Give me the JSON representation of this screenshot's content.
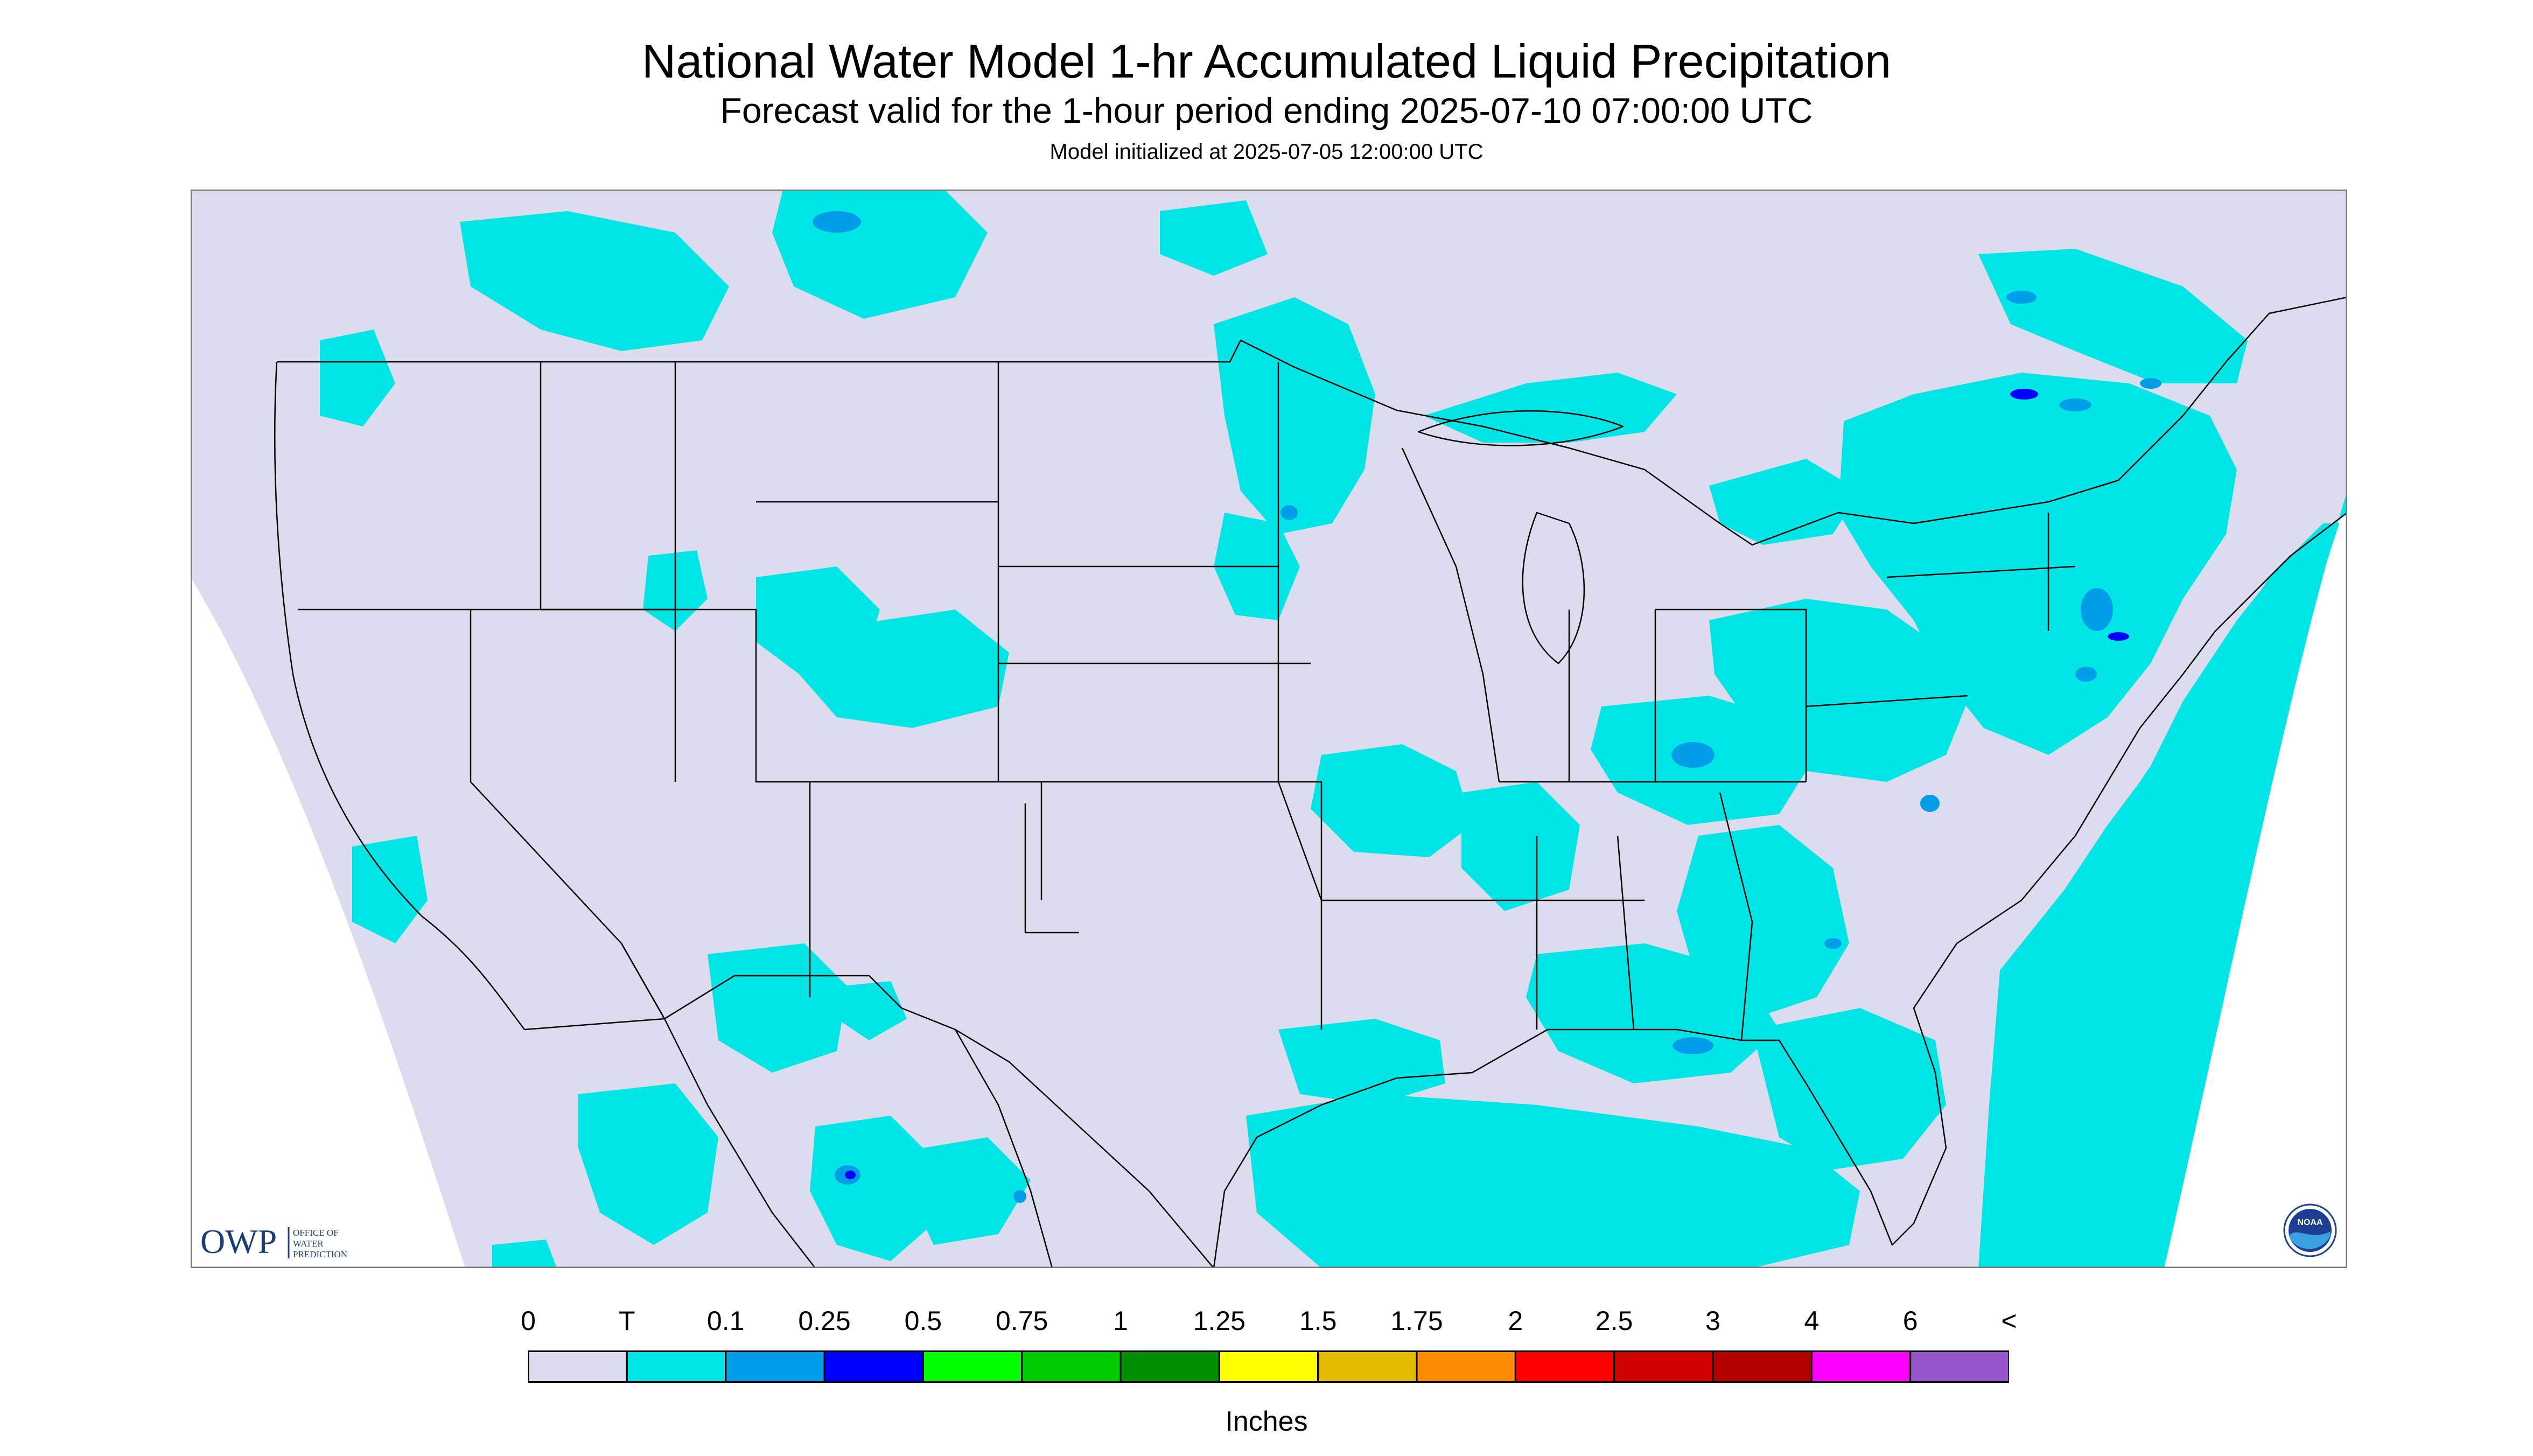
{
  "title": "National Water Model 1-hr Accumulated Liquid Precipitation",
  "subtitle": "Forecast valid for the 1-hour period ending 2025-07-10 07:00:00 UTC",
  "model_init": "Model initialized at 2025-07-05 12:00:00 UTC",
  "map": {
    "region": "Continental United States",
    "background_color": "#DCDCEF",
    "trace_color": "#00E5E5",
    "heavier_color": "#009EE8",
    "heaviest_color": "#0000FF",
    "border_color": "#000000"
  },
  "legend": {
    "units": "Inches",
    "tick_labels": [
      "0",
      "T",
      "0.1",
      "0.25",
      "0.5",
      "0.75",
      "1",
      "1.25",
      "1.5",
      "1.75",
      "2",
      "2.5",
      "3",
      "4",
      "6",
      "<"
    ],
    "colors": [
      "#DCDCEF",
      "#00E5E5",
      "#009EE8",
      "#0000FF",
      "#00FF00",
      "#00CC00",
      "#008F00",
      "#FFFF00",
      "#E5BB00",
      "#FF8C00",
      "#FF0000",
      "#D10000",
      "#B50000",
      "#FF00FF",
      "#9955CC"
    ]
  },
  "logos": {
    "owp_text": "OWP",
    "owp_sub": [
      "OFFICE OF",
      "WATER",
      "PREDICTION"
    ],
    "noaa_text": "NOAA"
  }
}
